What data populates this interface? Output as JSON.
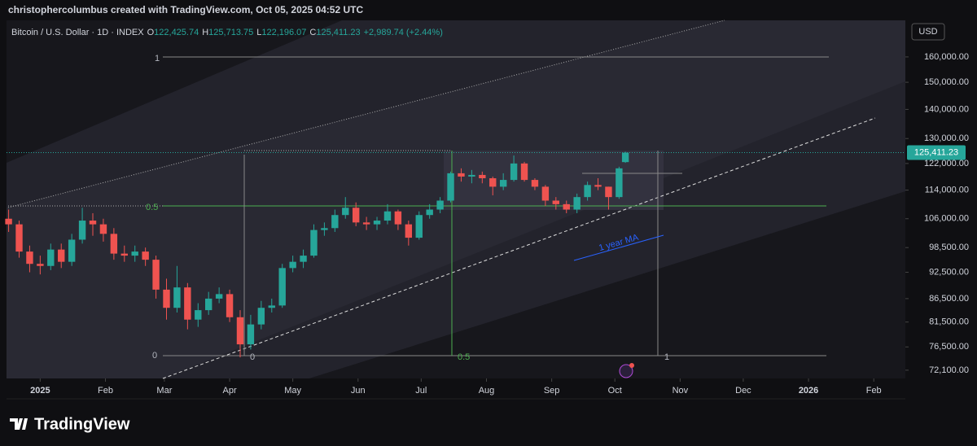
{
  "header": {
    "caption": "christophercolumbus created with TradingView.com, Oct 05, 2025 04:52 UTC"
  },
  "logo": "TradingView",
  "chart_data": {
    "type": "candlestick",
    "title": "Bitcoin / U.S. Dollar · 1D · INDEX",
    "ohlc_header": [
      {
        "key": "O",
        "value": "122,425.74"
      },
      {
        "key": "H",
        "value": "125,713.75"
      },
      {
        "key": "L",
        "value": "122,196.07"
      },
      {
        "key": "C",
        "value": "125,411.23"
      }
    ],
    "change": "+2,989.74 (+2.44%)",
    "currency": "USD",
    "up_color": "#26a69a",
    "down_color": "#ef5350",
    "log_scale": true,
    "x": [
      -15,
      -10,
      -5,
      0,
      5,
      10,
      15,
      20,
      25,
      30,
      35,
      40,
      45,
      50,
      55,
      60,
      65,
      70,
      75,
      80,
      85,
      90,
      95,
      100,
      105,
      110,
      115,
      120,
      125,
      130,
      135,
      140,
      145,
      150,
      155,
      160,
      165,
      170,
      175,
      180,
      185,
      190,
      195,
      200,
      205,
      210,
      215,
      220,
      225,
      230,
      235,
      240,
      245,
      250,
      255,
      260,
      265,
      270,
      275,
      278
    ],
    "open": [
      106000,
      104500,
      97500,
      94500,
      94000,
      98000,
      95000,
      100500,
      105500,
      104500,
      102000,
      97000,
      96500,
      97500,
      95500,
      88500,
      84500,
      89000,
      82000,
      84000,
      86500,
      87500,
      82500,
      77000,
      81000,
      84500,
      85000,
      93500,
      95000,
      96500,
      103000,
      103500,
      107000,
      109000,
      105000,
      104500,
      105500,
      108000,
      104500,
      101000,
      107000,
      108500,
      111000,
      119000,
      118000,
      118500,
      117500,
      115000,
      117000,
      122000,
      117000,
      115000,
      111000,
      110000,
      108500,
      112000,
      115500,
      115000,
      112000,
      122425.74
    ],
    "high": [
      108500,
      105500,
      99000,
      96500,
      99500,
      99500,
      102000,
      109000,
      107500,
      106000,
      103500,
      99000,
      99000,
      98500,
      96500,
      91000,
      94000,
      90000,
      85500,
      88000,
      89000,
      88500,
      84000,
      83000,
      86000,
      86500,
      94500,
      96500,
      98000,
      104500,
      105000,
      108500,
      112000,
      110500,
      106500,
      106500,
      110000,
      108500,
      105500,
      108000,
      110000,
      112000,
      119500,
      120500,
      120000,
      119500,
      118000,
      119000,
      124500,
      122500,
      117500,
      115500,
      112000,
      111000,
      113000,
      116500,
      117500,
      115000,
      121000,
      125713.75
    ],
    "low": [
      102500,
      96000,
      92500,
      92000,
      93000,
      93500,
      94000,
      99500,
      101500,
      100000,
      95500,
      95000,
      95000,
      94000,
      86500,
      82000,
      83500,
      80000,
      80500,
      83000,
      85500,
      81500,
      74500,
      76000,
      80000,
      83500,
      84500,
      92500,
      93500,
      96000,
      101500,
      102500,
      106000,
      104000,
      103000,
      103000,
      104500,
      103000,
      99000,
      100500,
      106000,
      107500,
      110500,
      116500,
      116000,
      116000,
      112500,
      114000,
      116500,
      116500,
      114000,
      109500,
      108500,
      107500,
      107500,
      111000,
      114000,
      108500,
      111500,
      122196.07
    ],
    "close": [
      104500,
      97500,
      94500,
      94000,
      98000,
      95000,
      100500,
      105500,
      104500,
      102000,
      97000,
      96500,
      97500,
      95500,
      88500,
      84500,
      89000,
      82000,
      84000,
      86500,
      87500,
      82500,
      77000,
      81000,
      84500,
      85000,
      93500,
      95000,
      96500,
      103000,
      103500,
      107000,
      109000,
      105000,
      104500,
      105500,
      108000,
      104500,
      101000,
      107000,
      108500,
      111000,
      119000,
      118000,
      118500,
      117500,
      115000,
      117000,
      122000,
      117000,
      115000,
      111000,
      110000,
      108500,
      112000,
      115500,
      115000,
      112000,
      120500,
      125411.23
    ],
    "last_price": {
      "value": 125411.23,
      "label": "125,411.23"
    },
    "xlim": [
      -16,
      411
    ],
    "xticks": [
      {
        "value": 0,
        "label": "2025"
      },
      {
        "value": 31,
        "label": "Feb"
      },
      {
        "value": 59,
        "label": "Mar"
      },
      {
        "value": 90,
        "label": "Apr"
      },
      {
        "value": 120,
        "label": "May"
      },
      {
        "value": 151,
        "label": "Jun"
      },
      {
        "value": 181,
        "label": "Jul"
      },
      {
        "value": 212,
        "label": "Aug"
      },
      {
        "value": 243,
        "label": "Sep"
      },
      {
        "value": 273,
        "label": "Oct"
      },
      {
        "value": 304,
        "label": "Nov"
      },
      {
        "value": 334,
        "label": "Dec"
      },
      {
        "value": 365,
        "label": "2026"
      },
      {
        "value": 396,
        "label": "Feb"
      }
    ],
    "ylim": [
      70600,
      175600
    ],
    "yticks": [
      {
        "value": 160000,
        "label": "160,000.00"
      },
      {
        "value": 150000,
        "label": "150,000.00"
      },
      {
        "value": 140000,
        "label": "140,000.00"
      },
      {
        "value": 130000,
        "label": "130,000.00"
      },
      {
        "value": 122000,
        "label": "122,000.00"
      },
      {
        "value": 114000,
        "label": "114,000.00"
      },
      {
        "value": 106000,
        "label": "106,000.00"
      },
      {
        "value": 98500,
        "label": "98,500.00"
      },
      {
        "value": 92500,
        "label": "92,500.00"
      },
      {
        "value": 86500,
        "label": "86,500.00"
      },
      {
        "value": 81500,
        "label": "81,500.00"
      },
      {
        "value": 76500,
        "label": "76,500.00"
      },
      {
        "value": 72100,
        "label": "72,100.00"
      }
    ],
    "drawings": {
      "fib_left": [
        "1",
        "0.5",
        "0"
      ],
      "fib_bottom": [
        "0",
        "0.5",
        "1"
      ],
      "ma_label": "1 year MA"
    }
  }
}
